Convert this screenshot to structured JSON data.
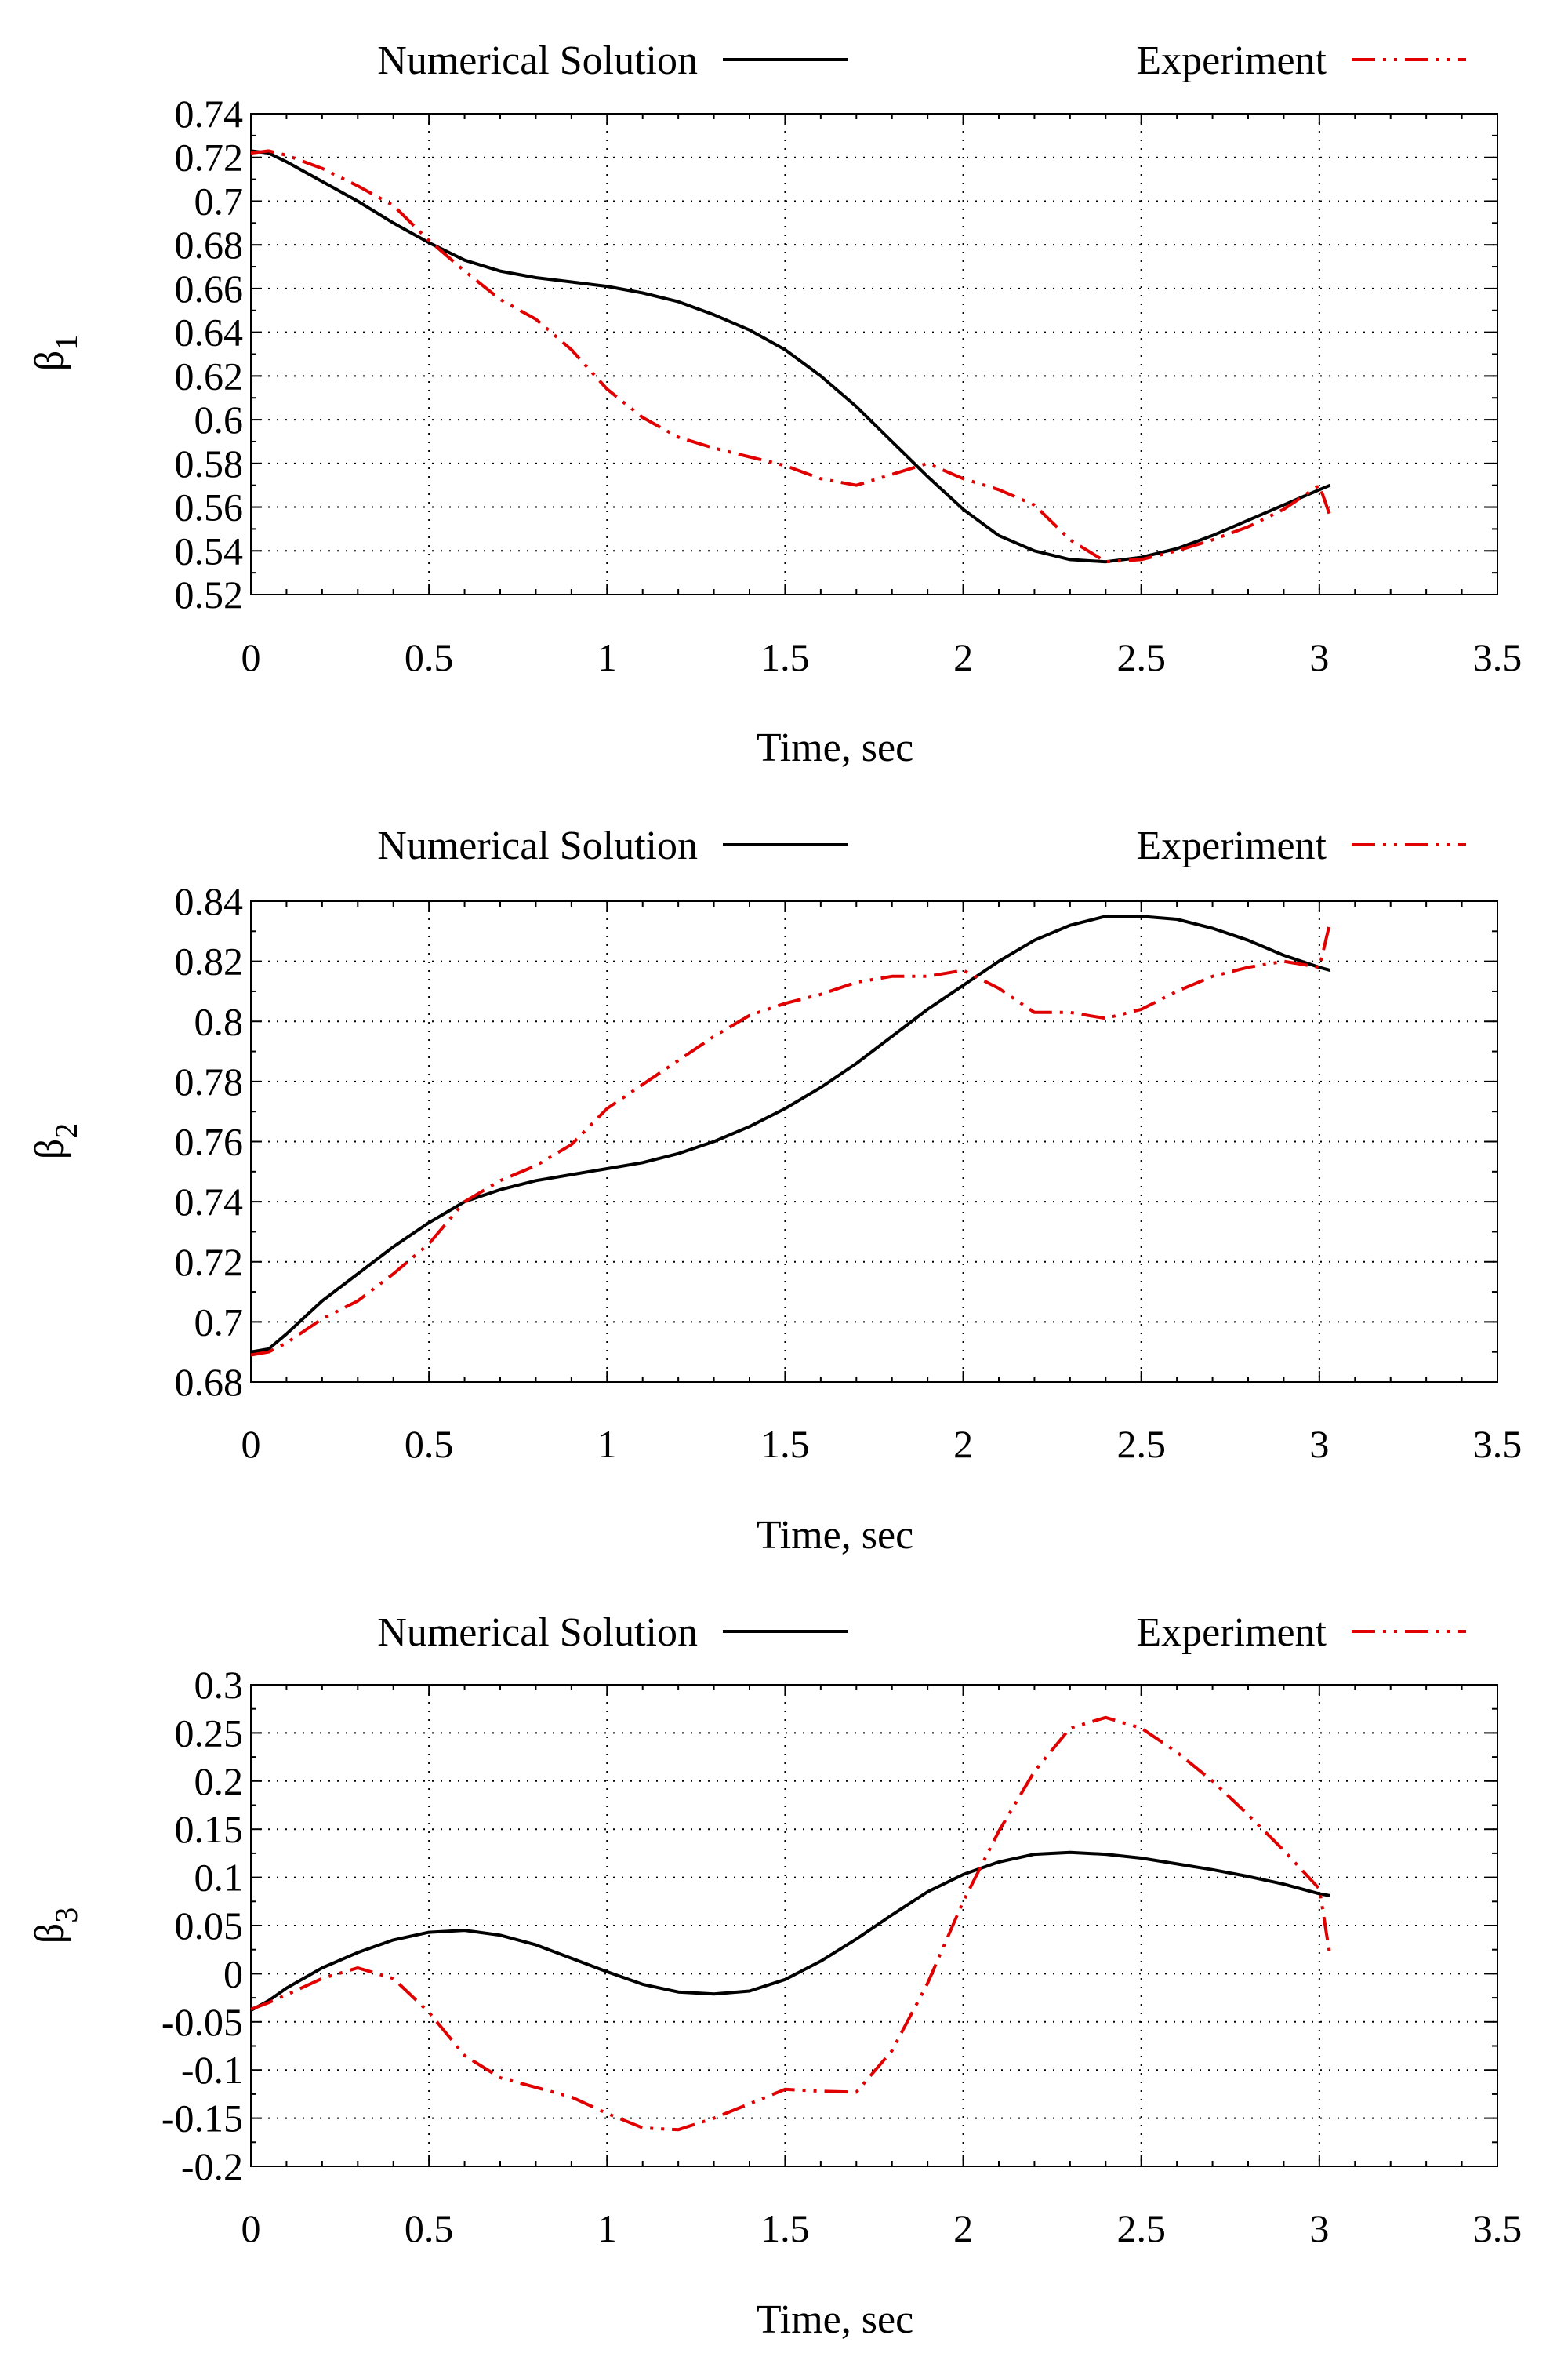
{
  "legend": {
    "numerical_label": "Numerical Solution",
    "experiment_label": "Experiment"
  },
  "colors": {
    "numerical": "#000000",
    "experiment": "#e00000"
  },
  "chart_data": [
    {
      "type": "line",
      "xlabel": "Time, sec",
      "ylabel_main": "β",
      "ylabel_sub": "1",
      "xlim": [
        0,
        3.5
      ],
      "ylim": [
        0.52,
        0.74
      ],
      "xticks": [
        "0",
        "0.5",
        "1",
        "1.5",
        "2",
        "2.5",
        "3",
        "3.5"
      ],
      "yticks": [
        "0.52",
        "0.54",
        "0.56",
        "0.58",
        "0.6",
        "0.62",
        "0.64",
        "0.66",
        "0.68",
        "0.7",
        "0.72",
        "0.74"
      ],
      "grid": true,
      "legend_position": "top",
      "series": [
        {
          "name": "Numerical Solution",
          "style": "solid",
          "x": [
            0,
            0.05,
            0.1,
            0.2,
            0.3,
            0.4,
            0.5,
            0.6,
            0.7,
            0.8,
            0.9,
            1.0,
            1.1,
            1.2,
            1.3,
            1.4,
            1.5,
            1.6,
            1.7,
            1.8,
            1.9,
            2.0,
            2.1,
            2.2,
            2.3,
            2.4,
            2.5,
            2.6,
            2.7,
            2.8,
            2.9,
            3.0,
            3.03
          ],
          "y": [
            0.723,
            0.722,
            0.718,
            0.709,
            0.7,
            0.69,
            0.681,
            0.673,
            0.668,
            0.665,
            0.663,
            0.661,
            0.658,
            0.654,
            0.648,
            0.641,
            0.632,
            0.62,
            0.606,
            0.59,
            0.574,
            0.559,
            0.547,
            0.54,
            0.536,
            0.535,
            0.537,
            0.541,
            0.547,
            0.554,
            0.561,
            0.568,
            0.57
          ]
        },
        {
          "name": "Experiment",
          "style": "dash-dot-dot",
          "x": [
            0,
            0.05,
            0.1,
            0.2,
            0.3,
            0.4,
            0.5,
            0.6,
            0.7,
            0.8,
            0.9,
            1.0,
            1.1,
            1.2,
            1.3,
            1.4,
            1.5,
            1.6,
            1.7,
            1.8,
            1.9,
            2.0,
            2.1,
            2.2,
            2.3,
            2.4,
            2.5,
            2.6,
            2.7,
            2.8,
            2.9,
            3.0,
            3.03
          ],
          "y": [
            0.722,
            0.723,
            0.721,
            0.715,
            0.707,
            0.698,
            0.682,
            0.668,
            0.655,
            0.646,
            0.632,
            0.614,
            0.601,
            0.592,
            0.587,
            0.583,
            0.579,
            0.573,
            0.57,
            0.575,
            0.58,
            0.573,
            0.568,
            0.561,
            0.545,
            0.535,
            0.536,
            0.54,
            0.545,
            0.551,
            0.559,
            0.57,
            0.556
          ]
        }
      ]
    },
    {
      "type": "line",
      "xlabel": "Time, sec",
      "ylabel_main": "β",
      "ylabel_sub": "2",
      "xlim": [
        0,
        3.5
      ],
      "ylim": [
        0.68,
        0.84
      ],
      "xticks": [
        "0",
        "0.5",
        "1",
        "1.5",
        "2",
        "2.5",
        "3",
        "3.5"
      ],
      "yticks": [
        "0.68",
        "0.7",
        "0.72",
        "0.74",
        "0.76",
        "0.78",
        "0.8",
        "0.82",
        "0.84"
      ],
      "grid": true,
      "legend_position": "top",
      "series": [
        {
          "name": "Numerical Solution",
          "style": "solid",
          "x": [
            0,
            0.05,
            0.1,
            0.2,
            0.3,
            0.4,
            0.5,
            0.6,
            0.7,
            0.8,
            0.9,
            1.0,
            1.1,
            1.2,
            1.3,
            1.4,
            1.5,
            1.6,
            1.7,
            1.8,
            1.9,
            2.0,
            2.1,
            2.2,
            2.3,
            2.4,
            2.5,
            2.6,
            2.7,
            2.8,
            2.9,
            3.0,
            3.03
          ],
          "y": [
            0.69,
            0.691,
            0.696,
            0.707,
            0.716,
            0.725,
            0.733,
            0.74,
            0.744,
            0.747,
            0.749,
            0.751,
            0.753,
            0.756,
            0.76,
            0.765,
            0.771,
            0.778,
            0.786,
            0.795,
            0.804,
            0.812,
            0.82,
            0.827,
            0.832,
            0.835,
            0.835,
            0.834,
            0.831,
            0.827,
            0.822,
            0.818,
            0.817
          ]
        },
        {
          "name": "Experiment",
          "style": "dash-dot-dot",
          "x": [
            0,
            0.05,
            0.1,
            0.2,
            0.3,
            0.4,
            0.5,
            0.6,
            0.7,
            0.8,
            0.9,
            1.0,
            1.1,
            1.2,
            1.3,
            1.4,
            1.5,
            1.6,
            1.7,
            1.8,
            1.9,
            2.0,
            2.1,
            2.2,
            2.3,
            2.4,
            2.5,
            2.6,
            2.7,
            2.8,
            2.9,
            3.0,
            3.03
          ],
          "y": [
            0.689,
            0.69,
            0.693,
            0.701,
            0.707,
            0.716,
            0.726,
            0.74,
            0.747,
            0.752,
            0.759,
            0.771,
            0.779,
            0.787,
            0.795,
            0.802,
            0.806,
            0.809,
            0.813,
            0.815,
            0.815,
            0.817,
            0.811,
            0.803,
            0.803,
            0.801,
            0.804,
            0.81,
            0.815,
            0.818,
            0.82,
            0.818,
            0.833
          ]
        }
      ]
    },
    {
      "type": "line",
      "xlabel": "Time, sec",
      "ylabel_main": "β",
      "ylabel_sub": "3",
      "xlim": [
        0,
        3.5
      ],
      "ylim": [
        -0.2,
        0.3
      ],
      "xticks": [
        "0",
        "0.5",
        "1",
        "1.5",
        "2",
        "2.5",
        "3",
        "3.5"
      ],
      "yticks": [
        "-0.2",
        "-0.15",
        "-0.1",
        "-0.05",
        "0",
        "0.05",
        "0.1",
        "0.15",
        "0.2",
        "0.25",
        "0.3"
      ],
      "grid": true,
      "legend_position": "top",
      "series": [
        {
          "name": "Numerical Solution",
          "style": "solid",
          "x": [
            0,
            0.05,
            0.1,
            0.2,
            0.3,
            0.4,
            0.5,
            0.6,
            0.7,
            0.8,
            0.9,
            1.0,
            1.1,
            1.2,
            1.3,
            1.4,
            1.5,
            1.6,
            1.7,
            1.8,
            1.9,
            2.0,
            2.1,
            2.2,
            2.3,
            2.4,
            2.5,
            2.6,
            2.7,
            2.8,
            2.9,
            3.0,
            3.03
          ],
          "y": [
            -0.038,
            -0.028,
            -0.015,
            0.006,
            0.022,
            0.035,
            0.043,
            0.045,
            0.04,
            0.03,
            0.016,
            0.002,
            -0.011,
            -0.019,
            -0.021,
            -0.018,
            -0.006,
            0.013,
            0.036,
            0.061,
            0.085,
            0.103,
            0.116,
            0.124,
            0.126,
            0.124,
            0.12,
            0.114,
            0.108,
            0.101,
            0.093,
            0.083,
            0.081
          ]
        },
        {
          "name": "Experiment",
          "style": "dash-dot-dot",
          "x": [
            0,
            0.05,
            0.1,
            0.2,
            0.3,
            0.4,
            0.5,
            0.6,
            0.7,
            0.8,
            0.9,
            1.0,
            1.1,
            1.2,
            1.3,
            1.4,
            1.5,
            1.6,
            1.7,
            1.8,
            1.9,
            2.0,
            2.1,
            2.2,
            2.3,
            2.4,
            2.5,
            2.6,
            2.7,
            2.8,
            2.9,
            3.0,
            3.03
          ],
          "y": [
            -0.037,
            -0.03,
            -0.022,
            -0.005,
            0.006,
            -0.005,
            -0.04,
            -0.085,
            -0.108,
            -0.118,
            -0.128,
            -0.145,
            -0.16,
            -0.162,
            -0.15,
            -0.135,
            -0.12,
            -0.122,
            -0.123,
            -0.08,
            -0.01,
            0.075,
            0.148,
            0.21,
            0.255,
            0.266,
            0.255,
            0.23,
            0.2,
            0.165,
            0.128,
            0.088,
            0.018
          ]
        }
      ]
    }
  ]
}
